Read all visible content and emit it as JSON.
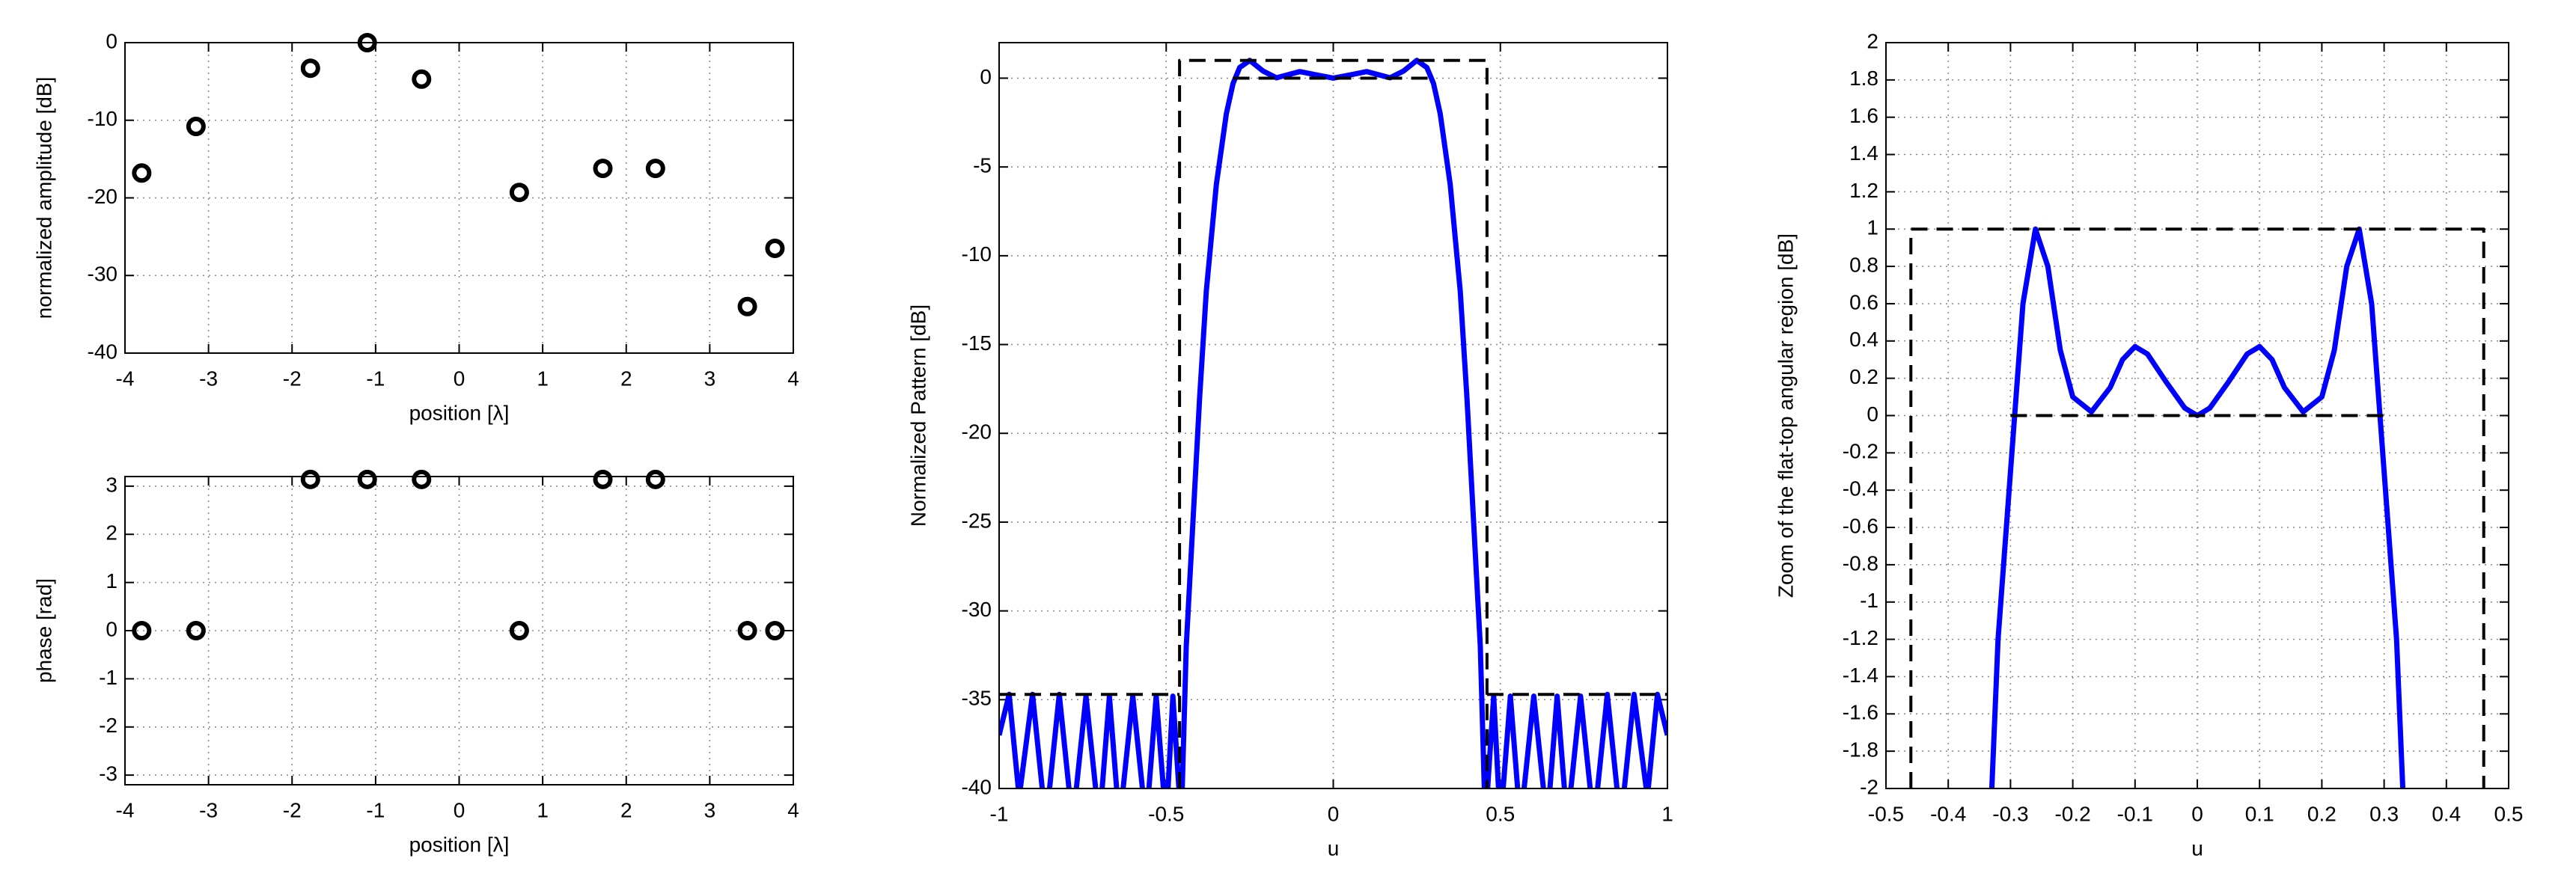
{
  "chart_data": [
    {
      "type": "scatter",
      "xlabel": "position [λ]",
      "ylabel": "normalized amplitude [dB]",
      "x": [
        -3.8,
        -3.15,
        -1.78,
        -1.1,
        -0.45,
        0.72,
        1.72,
        2.35,
        3.45,
        3.78
      ],
      "values": [
        -16.8,
        -10.8,
        -3.3,
        0,
        -4.7,
        -19.3,
        -16.2,
        -16.2,
        -34,
        -26.5
      ],
      "color": "#000000",
      "xlim": [
        -4,
        4
      ],
      "xticks": [
        -4,
        -3,
        -2,
        -1,
        0,
        1,
        2,
        3,
        4
      ],
      "ylim": [
        -40,
        0
      ],
      "yticks": [
        -40,
        -30,
        -20,
        -10,
        0
      ],
      "grid": true
    },
    {
      "type": "scatter",
      "xlabel": "position [λ]",
      "ylabel": "phase [rad]",
      "x": [
        -3.8,
        -3.15,
        -1.78,
        -1.1,
        -0.45,
        0.72,
        1.72,
        2.35,
        3.45,
        3.78
      ],
      "values": [
        0,
        0,
        3.14,
        3.14,
        3.14,
        0,
        3.14,
        3.14,
        0,
        0
      ],
      "color": "#000000",
      "xlim": [
        -4,
        4
      ],
      "xticks": [
        -4,
        -3,
        -2,
        -1,
        0,
        1,
        2,
        3,
        4
      ],
      "ylim": [
        -3.2,
        3.2
      ],
      "yticks": [
        -3,
        -2,
        -1,
        0,
        1,
        2,
        3
      ],
      "grid": true
    },
    {
      "type": "line",
      "xlabel": "u",
      "ylabel": "Normalized Pattern [dB]",
      "xlim": [
        -1,
        1
      ],
      "xticks": [
        -1,
        -0.5,
        0,
        0.5,
        1
      ],
      "ylim": [
        -40,
        2
      ],
      "yticks": [
        -40,
        -35,
        -30,
        -25,
        -20,
        -15,
        -10,
        -5,
        0
      ],
      "grid": true,
      "series": [
        {
          "color": "#0000ff",
          "style": "solid",
          "x": [
            -1,
            -0.97,
            -0.94,
            -0.9,
            -0.86,
            -0.82,
            -0.78,
            -0.74,
            -0.7,
            -0.67,
            -0.64,
            -0.6,
            -0.56,
            -0.53,
            -0.5,
            -0.48,
            -0.455,
            -0.44,
            -0.42,
            -0.4,
            -0.38,
            -0.35,
            -0.32,
            -0.3,
            -0.28,
            -0.25,
            -0.21,
            -0.17,
            -0.1,
            -0.05,
            0,
            0.05,
            0.1,
            0.17,
            0.21,
            0.25,
            0.28,
            0.3,
            0.32,
            0.35,
            0.38,
            0.4,
            0.42,
            0.44,
            0.455,
            0.48,
            0.5,
            0.53,
            0.56,
            0.6,
            0.64,
            0.67,
            0.7,
            0.74,
            0.78,
            0.82,
            0.86,
            0.9,
            0.94,
            0.97,
            1
          ],
          "values": [
            -37,
            -34.7,
            -40.5,
            -34.7,
            -42,
            -34.7,
            -42,
            -34.8,
            -42,
            -34.8,
            -42,
            -34.8,
            -42,
            -34.8,
            -42,
            -34.8,
            -42,
            -32,
            -25,
            -18,
            -12,
            -6,
            -2,
            -0.3,
            0.6,
            1.0,
            0.4,
            0.02,
            0.37,
            0.18,
            0,
            0.18,
            0.37,
            0.02,
            0.4,
            1.0,
            0.6,
            -0.3,
            -2,
            -6,
            -12,
            -18,
            -25,
            -32,
            -42,
            -34.8,
            -42,
            -34.8,
            -42,
            -34.8,
            -42,
            -34.8,
            -42,
            -34.8,
            -42,
            -34.7,
            -42,
            -34.7,
            -40.5,
            -34.7,
            -37
          ]
        },
        {
          "color": "#000000",
          "style": "dashed",
          "x": [
            -0.46,
            -0.46,
            0.46,
            0.46
          ],
          "values": [
            -40,
            1,
            1,
            -40
          ]
        },
        {
          "color": "#000000",
          "style": "dashed",
          "x": [
            -0.3,
            0.3
          ],
          "values": [
            0,
            0
          ]
        },
        {
          "color": "#000000",
          "style": "dashed",
          "x": [
            -1,
            -0.46
          ],
          "values": [
            -34.7,
            -34.7
          ]
        },
        {
          "color": "#000000",
          "style": "dashed",
          "x": [
            0.46,
            1
          ],
          "values": [
            -34.7,
            -34.7
          ]
        }
      ]
    },
    {
      "type": "line",
      "xlabel": "u",
      "ylabel": "Zoom of the flat-top angular region [dB]",
      "xlim": [
        -0.5,
        0.5
      ],
      "xticks": [
        -0.5,
        -0.4,
        -0.3,
        -0.2,
        -0.1,
        0,
        0.1,
        0.2,
        0.3,
        0.4,
        0.5
      ],
      "ylim": [
        -2,
        2
      ],
      "yticks": [
        -2,
        -1.8,
        -1.6,
        -1.4,
        -1.2,
        -1,
        -0.8,
        -0.6,
        -0.4,
        -0.2,
        0,
        0.2,
        0.4,
        0.6,
        0.8,
        1,
        1.2,
        1.4,
        1.6,
        1.8,
        2
      ],
      "grid": true,
      "series": [
        {
          "color": "#0000ff",
          "style": "solid",
          "x": [
            -0.33,
            -0.32,
            -0.3,
            -0.28,
            -0.26,
            -0.24,
            -0.22,
            -0.2,
            -0.17,
            -0.14,
            -0.12,
            -0.1,
            -0.08,
            -0.05,
            -0.02,
            0,
            0.02,
            0.05,
            0.08,
            0.1,
            0.12,
            0.14,
            0.17,
            0.2,
            0.22,
            0.24,
            0.26,
            0.28,
            0.3,
            0.32,
            0.33
          ],
          "values": [
            -2,
            -1.2,
            -0.3,
            0.6,
            1,
            0.8,
            0.35,
            0.1,
            0.02,
            0.15,
            0.3,
            0.37,
            0.33,
            0.18,
            0.04,
            0,
            0.04,
            0.18,
            0.33,
            0.37,
            0.3,
            0.15,
            0.02,
            0.1,
            0.35,
            0.8,
            1,
            0.6,
            -0.3,
            -1.2,
            -2
          ]
        },
        {
          "color": "#000000",
          "style": "dashed",
          "x": [
            -0.46,
            -0.46,
            0.46,
            0.46
          ],
          "values": [
            -2,
            1,
            1,
            -2
          ]
        },
        {
          "color": "#000000",
          "style": "dashed",
          "x": [
            -0.3,
            0.3
          ],
          "values": [
            0,
            0
          ]
        }
      ]
    }
  ]
}
